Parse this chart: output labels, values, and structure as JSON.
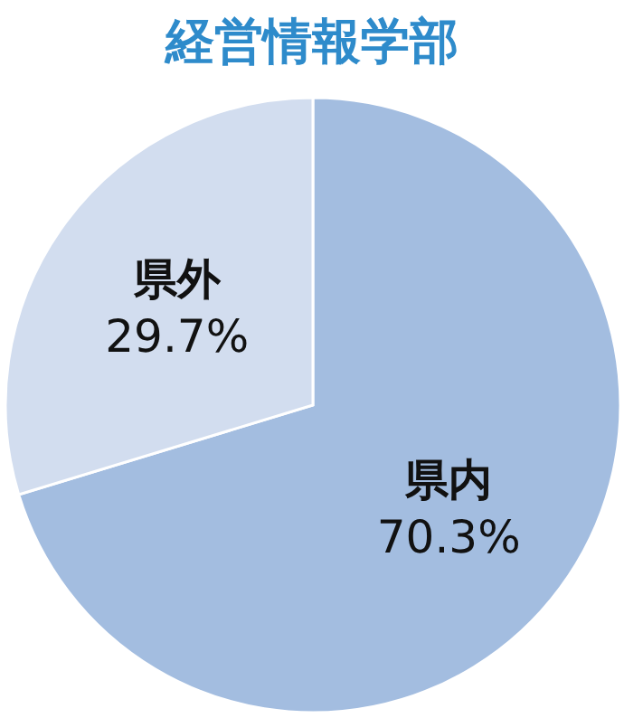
{
  "chart_data": {
    "type": "pie",
    "title": "経営情報学部",
    "categories": [
      "県内",
      "県外"
    ],
    "values": [
      70.3,
      29.7
    ],
    "colors": [
      "#a3bde0",
      "#d2ddef"
    ],
    "value_labels": [
      "70.3%",
      "29.7%"
    ]
  }
}
